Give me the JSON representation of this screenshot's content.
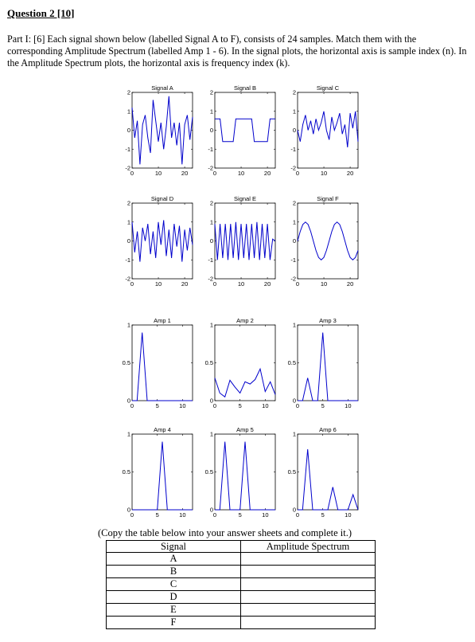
{
  "heading": "Question 2 [10]",
  "intro": "Part I: [6] Each signal shown below (labelled Signal A to F), consists of 24 samples. Match them with the corresponding Amplitude Spectrum (labelled Amp 1 - 6). In the signal plots, the horizontal axis is sample index (n). In the Amplitude Spectrum plots, the horizontal axis is frequency index (k).",
  "copy_note": "(Copy the table below into your answer sheets and complete it.)",
  "table": {
    "headers": [
      "Signal",
      "Amplitude Spectrum"
    ],
    "rows": [
      "A",
      "B",
      "C",
      "D",
      "E",
      "F"
    ]
  },
  "colors": {
    "line": "#0000cc",
    "axis": "#000000"
  },
  "chart_data": [
    {
      "type": "line",
      "title": "Signal A",
      "xlim": [
        0,
        23
      ],
      "ylim": [
        -2,
        2
      ],
      "xticks": [
        "0",
        "10",
        "20"
      ],
      "yticks": [
        "-2",
        "-1",
        "0",
        "1",
        "2"
      ],
      "x": [
        0,
        1,
        2,
        3,
        4,
        5,
        6,
        7,
        8,
        9,
        10,
        11,
        12,
        13,
        14,
        15,
        16,
        17,
        18,
        19,
        20,
        21,
        22,
        23
      ],
      "y": [
        1.2,
        -0.4,
        0.5,
        -1.8,
        0.3,
        0.8,
        -0.4,
        -1.2,
        1.6,
        0.5,
        -0.6,
        0.4,
        -1.0,
        0.2,
        1.8,
        -0.4,
        0.4,
        -0.8,
        0.4,
        -1.8,
        0.3,
        0.8,
        -0.5,
        0.7
      ]
    },
    {
      "type": "line",
      "title": "Signal B",
      "xlim": [
        0,
        23
      ],
      "ylim": [
        -2,
        2
      ],
      "xticks": [
        "0",
        "10",
        "20"
      ],
      "yticks": [
        "-2",
        "-1",
        "0",
        "1",
        "2"
      ],
      "x": [
        0,
        1,
        2,
        3,
        4,
        5,
        6,
        7,
        8,
        9,
        10,
        11,
        12,
        13,
        14,
        15,
        16,
        17,
        18,
        19,
        20,
        21,
        22,
        23
      ],
      "y": [
        0.6,
        0.6,
        0.6,
        -0.6,
        -0.6,
        -0.6,
        -0.6,
        -0.6,
        0.6,
        0.6,
        0.6,
        0.6,
        0.6,
        0.6,
        0.6,
        -0.6,
        -0.6,
        -0.6,
        -0.6,
        -0.6,
        -0.6,
        0.6,
        0.6,
        0.6
      ]
    },
    {
      "type": "line",
      "title": "Signal C",
      "xlim": [
        0,
        23
      ],
      "ylim": [
        -2,
        2
      ],
      "xticks": [
        "0",
        "10",
        "20"
      ],
      "yticks": [
        "-2",
        "-1",
        "0",
        "1",
        "2"
      ],
      "x": [
        0,
        1,
        2,
        3,
        4,
        5,
        6,
        7,
        8,
        9,
        10,
        11,
        12,
        13,
        14,
        15,
        16,
        17,
        18,
        19,
        20,
        21,
        22,
        23
      ],
      "y": [
        0.0,
        -0.6,
        0.3,
        0.8,
        0.0,
        0.5,
        -0.2,
        0.6,
        0.0,
        0.4,
        1.0,
        0.0,
        -0.5,
        0.7,
        0.0,
        0.4,
        0.9,
        -0.2,
        0.3,
        -0.9,
        0.9,
        0.1,
        1.0,
        -0.6
      ]
    },
    {
      "type": "line",
      "title": "Signal D",
      "xlim": [
        0,
        23
      ],
      "ylim": [
        -2,
        2
      ],
      "xticks": [
        "0",
        "10",
        "20"
      ],
      "yticks": [
        "-2",
        "-1",
        "0",
        "1",
        "2"
      ],
      "x": [
        0,
        1,
        2,
        3,
        4,
        5,
        6,
        7,
        8,
        9,
        10,
        11,
        12,
        13,
        14,
        15,
        16,
        17,
        18,
        19,
        20,
        21,
        22,
        23
      ],
      "y": [
        1.0,
        -0.6,
        0.5,
        -1.1,
        0.7,
        0.0,
        0.9,
        -0.7,
        0.5,
        -0.9,
        1.0,
        -0.2,
        1.1,
        -0.8,
        0.6,
        -0.9,
        0.9,
        -0.3,
        0.8,
        -1.1,
        0.6,
        -0.5,
        0.7,
        -0.2
      ]
    },
    {
      "type": "line",
      "title": "Signal E",
      "xlim": [
        0,
        23
      ],
      "ylim": [
        -2,
        2
      ],
      "xticks": [
        "0",
        "10",
        "20"
      ],
      "yticks": [
        "-2",
        "-1",
        "0",
        "1",
        "2"
      ],
      "x": [
        0,
        1,
        2,
        3,
        4,
        5,
        6,
        7,
        8,
        9,
        10,
        11,
        12,
        13,
        14,
        15,
        16,
        17,
        18,
        19,
        20,
        21,
        22,
        23
      ],
      "y": [
        0.9,
        -1.0,
        0.9,
        -0.9,
        0.9,
        -1.0,
        0.9,
        -0.9,
        1.0,
        -1.0,
        0.9,
        -0.9,
        0.9,
        -1.0,
        0.9,
        -0.9,
        1.0,
        -1.0,
        0.9,
        -0.9,
        0.9,
        -1.0,
        0.1,
        0.0
      ]
    },
    {
      "type": "line",
      "title": "Signal F",
      "xlim": [
        0,
        23
      ],
      "ylim": [
        -2,
        2
      ],
      "xticks": [
        "0",
        "10",
        "20"
      ],
      "yticks": [
        "-2",
        "-1",
        "0",
        "1",
        "2"
      ],
      "x": [
        0,
        1,
        2,
        3,
        4,
        5,
        6,
        7,
        8,
        9,
        10,
        11,
        12,
        13,
        14,
        15,
        16,
        17,
        18,
        19,
        20,
        21,
        22,
        23
      ],
      "y": [
        0.0,
        0.5,
        0.87,
        1.0,
        0.87,
        0.5,
        0.0,
        -0.5,
        -0.87,
        -1.0,
        -0.87,
        -0.5,
        0.0,
        0.5,
        0.87,
        1.0,
        0.87,
        0.5,
        0.0,
        -0.5,
        -0.87,
        -1.0,
        -0.87,
        -0.5
      ]
    },
    {
      "type": "line",
      "title": "Amp 1",
      "xlim": [
        0,
        12
      ],
      "ylim": [
        0,
        1
      ],
      "xticks": [
        "0",
        "5",
        "10"
      ],
      "yticks": [
        "0",
        "0.5",
        "1"
      ],
      "x": [
        0,
        1,
        2,
        3,
        4,
        5,
        6,
        7,
        8,
        9,
        10,
        11,
        12
      ],
      "y": [
        0,
        0,
        0.9,
        0,
        0,
        0,
        0,
        0,
        0,
        0,
        0,
        0,
        0
      ]
    },
    {
      "type": "line",
      "title": "Amp 2",
      "xlim": [
        0,
        12
      ],
      "ylim": [
        0,
        1
      ],
      "xticks": [
        "0",
        "5",
        "10"
      ],
      "yticks": [
        "0",
        "0.5",
        "1"
      ],
      "x": [
        0,
        1,
        2,
        3,
        4,
        5,
        6,
        7,
        8,
        9,
        10,
        11,
        12
      ],
      "y": [
        0.3,
        0.1,
        0.05,
        0.27,
        0.18,
        0.1,
        0.25,
        0.22,
        0.28,
        0.42,
        0.12,
        0.25,
        0.08
      ]
    },
    {
      "type": "line",
      "title": "Amp 3",
      "xlim": [
        0,
        12
      ],
      "ylim": [
        0,
        1
      ],
      "xticks": [
        "0",
        "5",
        "10"
      ],
      "yticks": [
        "0",
        "0.5",
        "1"
      ],
      "x": [
        0,
        1,
        2,
        3,
        4,
        5,
        6,
        7,
        8,
        9,
        10,
        11,
        12
      ],
      "y": [
        0,
        0,
        0.3,
        0,
        0,
        0.9,
        0,
        0,
        0,
        0,
        0,
        0,
        0
      ]
    },
    {
      "type": "line",
      "title": "Amp 4",
      "xlim": [
        0,
        12
      ],
      "ylim": [
        0,
        1
      ],
      "xticks": [
        "0",
        "5",
        "10"
      ],
      "yticks": [
        "0",
        "0.5",
        "1"
      ],
      "x": [
        0,
        1,
        2,
        3,
        4,
        5,
        6,
        7,
        8,
        9,
        10,
        11,
        12
      ],
      "y": [
        0,
        0,
        0,
        0,
        0,
        0,
        0.9,
        0,
        0,
        0,
        0,
        0,
        0
      ]
    },
    {
      "type": "line",
      "title": "Amp 5",
      "xlim": [
        0,
        12
      ],
      "ylim": [
        0,
        1
      ],
      "xticks": [
        "0",
        "5",
        "10"
      ],
      "yticks": [
        "0",
        "0.5",
        "1"
      ],
      "x": [
        0,
        1,
        2,
        3,
        4,
        5,
        6,
        7,
        8,
        9,
        10,
        11,
        12
      ],
      "y": [
        0,
        0,
        0.9,
        0,
        0,
        0,
        0.9,
        0,
        0,
        0,
        0,
        0,
        0
      ]
    },
    {
      "type": "line",
      "title": "Amp 6",
      "xlim": [
        0,
        12
      ],
      "ylim": [
        0,
        1
      ],
      "xticks": [
        "0",
        "5",
        "10"
      ],
      "yticks": [
        "0",
        "0.5",
        "1"
      ],
      "x": [
        0,
        1,
        2,
        3,
        4,
        5,
        6,
        7,
        8,
        9,
        10,
        11,
        12
      ],
      "y": [
        0,
        0,
        0.8,
        0,
        0,
        0,
        0,
        0.3,
        0,
        0,
        0,
        0.2,
        0
      ]
    }
  ]
}
